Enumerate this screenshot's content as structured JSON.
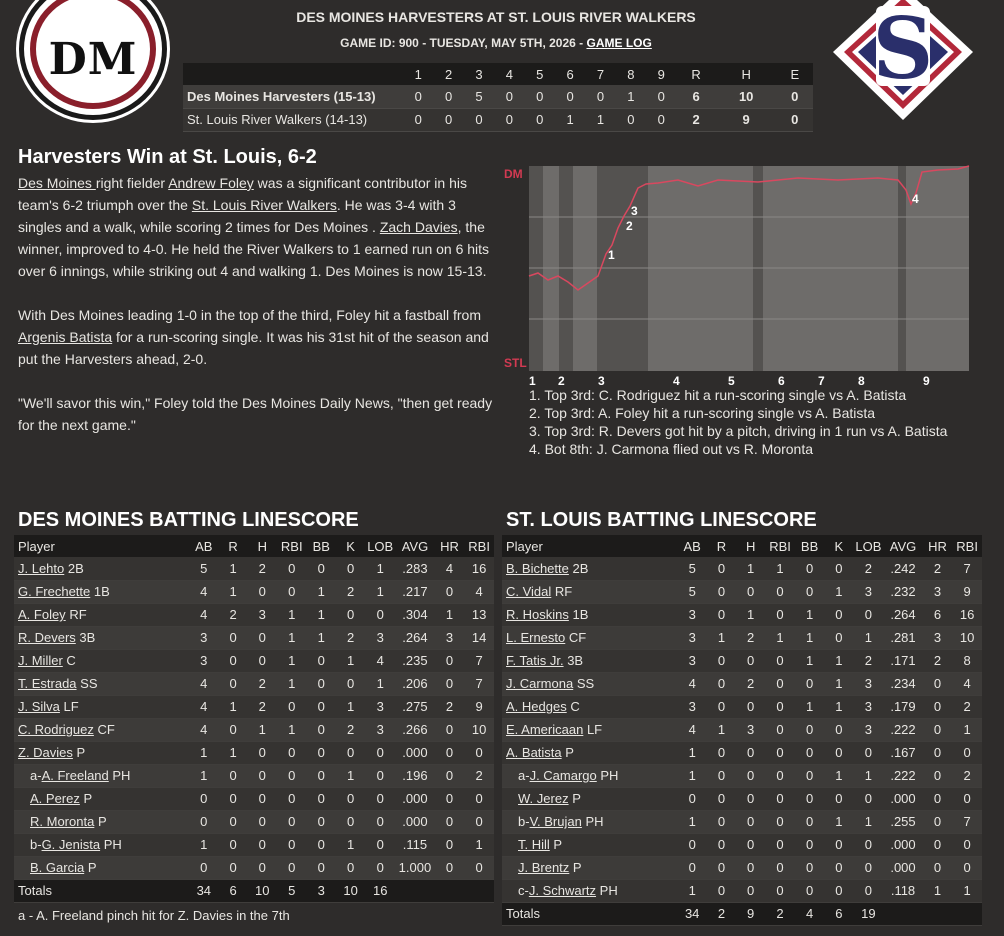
{
  "header": {
    "title": "DES MOINES HARVESTERS AT ST. LOUIS RIVER WALKERS",
    "subtitle_prefix": "GAME ID: 900 - TUESDAY, MAY 5TH, 2026 - ",
    "game_log_link": "GAME LOG",
    "home_logo_text": "DM",
    "away_logo_text": "S"
  },
  "linescore": {
    "columns": [
      "1",
      "2",
      "3",
      "4",
      "5",
      "6",
      "7",
      "8",
      "9",
      "R",
      "H",
      "E"
    ],
    "rows": [
      {
        "team": "Des Moines Harvesters (15-13)",
        "scores": [
          "0",
          "0",
          "5",
          "0",
          "0",
          "0",
          "0",
          "1",
          "0",
          "6",
          "10",
          "0"
        ]
      },
      {
        "team": "St. Louis River Walkers (14-13)",
        "scores": [
          "0",
          "0",
          "0",
          "0",
          "0",
          "1",
          "1",
          "0",
          "0",
          "2",
          "9",
          "0"
        ]
      }
    ]
  },
  "recap": {
    "headline": "Harvesters Win at St. Louis, 6-2",
    "p1": [
      {
        "t": "Des Moines ",
        "link": true
      },
      {
        "t": " right fielder ",
        "link": false
      },
      {
        "t": "Andrew Foley",
        "link": true
      },
      {
        "t": " was a significant contributor in his team's 6-2 triumph over the ",
        "link": false
      },
      {
        "t": "St. Louis River Walkers",
        "link": true
      },
      {
        "t": ". He was 3-4 with 3 singles and a walk, while scoring 2 times for Des Moines . ",
        "link": false
      },
      {
        "t": "Zach Davies",
        "link": true
      },
      {
        "t": ", the winner, improved to 4-0. He held the River Walkers to 1 earned run on 6 hits over 6 innings, while striking out 4 and walking 1. Des Moines is now 15-13.",
        "link": false
      }
    ],
    "p2": [
      {
        "t": "With Des Moines leading 1-0 in the top of the third, Foley hit a fastball from ",
        "link": false
      },
      {
        "t": "Argenis Batista",
        "link": true
      },
      {
        "t": " for a run-scoring single. It was his 31st hit of the season and put the Harvesters ahead, 2-0.",
        "link": false
      }
    ],
    "p3": "\"We'll savor this win,\" Foley told the Des Moines Daily News, \"then get ready for the next game.\""
  },
  "winprob": {
    "top_label": "DM",
    "bottom_label": "STL",
    "inning_labels": [
      "1",
      "2",
      "3",
      "4",
      "5",
      "6",
      "7",
      "8",
      "9"
    ],
    "markers": [
      "1",
      "2",
      "3",
      "4"
    ],
    "notes": [
      "1. Top 3rd: C. Rodriguez hit a run-scoring single vs A. Batista",
      "2. Top 3rd: A. Foley hit a run-scoring single vs A. Batista",
      "3. Top 3rd: R. Devers got hit by a pitch, driving in 1 run vs A. Batista",
      "4. Bot 8th: J. Carmona flied out vs R. Moronta"
    ],
    "line_color": "#d9485f"
  },
  "dm_batting": {
    "title": "DES MOINES BATTING LINESCORE",
    "columns": [
      "Player",
      "AB",
      "R",
      "H",
      "RBI",
      "BB",
      "K",
      "LOB",
      "AVG",
      "HR",
      "RBI"
    ],
    "rows": [
      {
        "name": "J. Lehto",
        "pos": "2B",
        "pre": "",
        "sub": false,
        "s": [
          "5",
          "1",
          "2",
          "0",
          "0",
          "0",
          "1",
          ".283",
          "4",
          "16"
        ]
      },
      {
        "name": "G. Frechette",
        "pos": "1B",
        "pre": "",
        "sub": false,
        "s": [
          "4",
          "1",
          "0",
          "0",
          "1",
          "2",
          "1",
          ".217",
          "0",
          "4"
        ]
      },
      {
        "name": "A. Foley",
        "pos": "RF",
        "pre": "",
        "sub": false,
        "s": [
          "4",
          "2",
          "3",
          "1",
          "1",
          "0",
          "0",
          ".304",
          "1",
          "13"
        ]
      },
      {
        "name": "R. Devers",
        "pos": "3B",
        "pre": "",
        "sub": false,
        "s": [
          "3",
          "0",
          "0",
          "1",
          "1",
          "2",
          "3",
          ".264",
          "3",
          "14"
        ]
      },
      {
        "name": "J. Miller",
        "pos": "C",
        "pre": "",
        "sub": false,
        "s": [
          "3",
          "0",
          "0",
          "1",
          "0",
          "1",
          "4",
          ".235",
          "0",
          "7"
        ]
      },
      {
        "name": "T. Estrada",
        "pos": "SS",
        "pre": "",
        "sub": false,
        "s": [
          "4",
          "0",
          "2",
          "1",
          "0",
          "0",
          "1",
          ".206",
          "0",
          "7"
        ]
      },
      {
        "name": "J. Silva",
        "pos": "LF",
        "pre": "",
        "sub": false,
        "s": [
          "4",
          "1",
          "2",
          "0",
          "0",
          "1",
          "3",
          ".275",
          "2",
          "9"
        ]
      },
      {
        "name": "C. Rodriguez",
        "pos": "CF",
        "pre": "",
        "sub": false,
        "s": [
          "4",
          "0",
          "1",
          "1",
          "0",
          "2",
          "3",
          ".266",
          "0",
          "10"
        ]
      },
      {
        "name": "Z. Davies",
        "pos": "P",
        "pre": "",
        "sub": false,
        "s": [
          "1",
          "1",
          "0",
          "0",
          "0",
          "0",
          "0",
          ".000",
          "0",
          "0"
        ]
      },
      {
        "name": "A. Freeland",
        "pos": "PH",
        "pre": "a-",
        "sub": true,
        "s": [
          "1",
          "0",
          "0",
          "0",
          "0",
          "1",
          "0",
          ".196",
          "0",
          "2"
        ]
      },
      {
        "name": "A. Perez",
        "pos": "P",
        "pre": "",
        "sub": true,
        "s": [
          "0",
          "0",
          "0",
          "0",
          "0",
          "0",
          "0",
          ".000",
          "0",
          "0"
        ]
      },
      {
        "name": "R. Moronta",
        "pos": "P",
        "pre": "",
        "sub": true,
        "s": [
          "0",
          "0",
          "0",
          "0",
          "0",
          "0",
          "0",
          ".000",
          "0",
          "0"
        ]
      },
      {
        "name": "G. Jenista",
        "pos": "PH",
        "pre": "b-",
        "sub": true,
        "s": [
          "1",
          "0",
          "0",
          "0",
          "0",
          "1",
          "0",
          ".115",
          "0",
          "1"
        ]
      },
      {
        "name": "B. Garcia",
        "pos": "P",
        "pre": "",
        "sub": true,
        "s": [
          "0",
          "0",
          "0",
          "0",
          "0",
          "0",
          "0",
          "1.000",
          "0",
          "0"
        ]
      }
    ],
    "totals": [
      "Totals",
      "34",
      "6",
      "10",
      "5",
      "3",
      "10",
      "16",
      "",
      "",
      ""
    ],
    "footnote": "a - A. Freeland pinch hit for Z. Davies in the 7th"
  },
  "stl_batting": {
    "title": "ST. LOUIS BATTING LINESCORE",
    "columns": [
      "Player",
      "AB",
      "R",
      "H",
      "RBI",
      "BB",
      "K",
      "LOB",
      "AVG",
      "HR",
      "RBI"
    ],
    "rows": [
      {
        "name": "B. Bichette",
        "pos": "2B",
        "pre": "",
        "sub": false,
        "s": [
          "5",
          "0",
          "1",
          "1",
          "0",
          "0",
          "2",
          ".242",
          "2",
          "7"
        ]
      },
      {
        "name": "C. Vidal",
        "pos": "RF",
        "pre": "",
        "sub": false,
        "s": [
          "5",
          "0",
          "0",
          "0",
          "0",
          "1",
          "3",
          ".232",
          "3",
          "9"
        ]
      },
      {
        "name": "R. Hoskins",
        "pos": "1B",
        "pre": "",
        "sub": false,
        "s": [
          "3",
          "0",
          "1",
          "0",
          "1",
          "0",
          "0",
          ".264",
          "6",
          "16"
        ]
      },
      {
        "name": "L. Ernesto",
        "pos": "CF",
        "pre": "",
        "sub": false,
        "s": [
          "3",
          "1",
          "2",
          "1",
          "1",
          "0",
          "1",
          ".281",
          "3",
          "10"
        ]
      },
      {
        "name": "F. Tatis Jr.",
        "pos": "3B",
        "pre": "",
        "sub": false,
        "s": [
          "3",
          "0",
          "0",
          "0",
          "1",
          "1",
          "2",
          ".171",
          "2",
          "8"
        ]
      },
      {
        "name": "J. Carmona",
        "pos": "SS",
        "pre": "",
        "sub": false,
        "s": [
          "4",
          "0",
          "2",
          "0",
          "0",
          "1",
          "3",
          ".234",
          "0",
          "4"
        ]
      },
      {
        "name": "A. Hedges",
        "pos": "C",
        "pre": "",
        "sub": false,
        "s": [
          "3",
          "0",
          "0",
          "0",
          "1",
          "1",
          "3",
          ".179",
          "0",
          "2"
        ]
      },
      {
        "name": "E. Americaan",
        "pos": "LF",
        "pre": "",
        "sub": false,
        "s": [
          "4",
          "1",
          "3",
          "0",
          "0",
          "0",
          "3",
          ".222",
          "0",
          "1"
        ]
      },
      {
        "name": "A. Batista",
        "pos": "P",
        "pre": "",
        "sub": false,
        "s": [
          "1",
          "0",
          "0",
          "0",
          "0",
          "0",
          "0",
          ".167",
          "0",
          "0"
        ]
      },
      {
        "name": "J. Camargo",
        "pos": "PH",
        "pre": "a-",
        "sub": true,
        "s": [
          "1",
          "0",
          "0",
          "0",
          "0",
          "1",
          "1",
          ".222",
          "0",
          "2"
        ]
      },
      {
        "name": "W. Jerez",
        "pos": "P",
        "pre": "",
        "sub": true,
        "s": [
          "0",
          "0",
          "0",
          "0",
          "0",
          "0",
          "0",
          ".000",
          "0",
          "0"
        ]
      },
      {
        "name": "V. Brujan",
        "pos": "PH",
        "pre": "b-",
        "sub": true,
        "s": [
          "1",
          "0",
          "0",
          "0",
          "0",
          "1",
          "1",
          ".255",
          "0",
          "7"
        ]
      },
      {
        "name": "T. Hill",
        "pos": "P",
        "pre": "",
        "sub": true,
        "s": [
          "0",
          "0",
          "0",
          "0",
          "0",
          "0",
          "0",
          ".000",
          "0",
          "0"
        ]
      },
      {
        "name": "J. Brentz",
        "pos": "P",
        "pre": "",
        "sub": true,
        "s": [
          "0",
          "0",
          "0",
          "0",
          "0",
          "0",
          "0",
          ".000",
          "0",
          "0"
        ]
      },
      {
        "name": "J. Schwartz",
        "pos": "PH",
        "pre": "c-",
        "sub": true,
        "s": [
          "1",
          "0",
          "0",
          "0",
          "0",
          "0",
          "0",
          ".118",
          "1",
          "1"
        ]
      }
    ],
    "totals": [
      "Totals",
      "34",
      "2",
      "9",
      "2",
      "4",
      "6",
      "19",
      "",
      "",
      ""
    ]
  }
}
